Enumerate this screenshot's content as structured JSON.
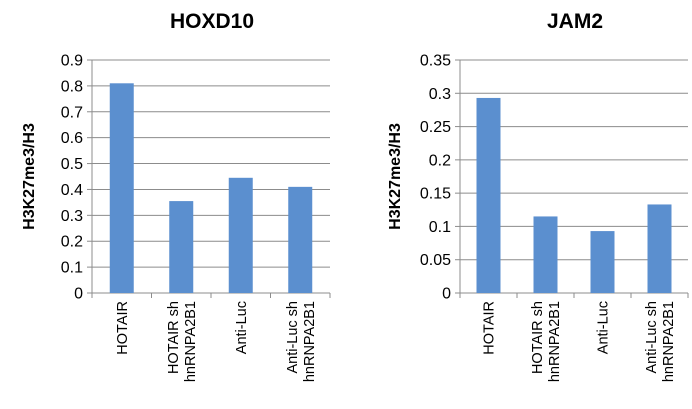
{
  "chart_data": [
    {
      "type": "bar",
      "title": "HOXD10",
      "xlabel": "",
      "ylabel": "H3K27me3/H3",
      "ylim": [
        0,
        0.9
      ],
      "yticks": [
        "0",
        "0.1",
        "0.2",
        "0.3",
        "0.4",
        "0.5",
        "0.6",
        "0.7",
        "0.8",
        "0.9"
      ],
      "grid": true,
      "legend": "none",
      "categories": [
        [
          "HOTAIR"
        ],
        [
          "HOTAIR sh",
          "hnRNPA2B1"
        ],
        [
          "Anti-Luc"
        ],
        [
          "Anti-Luc sh",
          "hnRNPA2B1"
        ]
      ],
      "values": [
        0.81,
        0.355,
        0.445,
        0.41
      ],
      "color": "#5b8fcf"
    },
    {
      "type": "bar",
      "title": "JAM2",
      "xlabel": "",
      "ylabel": "H3K27me3/H3",
      "ylim": [
        0,
        0.35
      ],
      "yticks": [
        "0",
        "0.05",
        "0.1",
        "0.15",
        "0.2",
        "0.25",
        "0.3",
        "0.35"
      ],
      "grid": true,
      "legend": "none",
      "categories": [
        [
          "HOTAIR"
        ],
        [
          "HOTAIR sh",
          "hnRNPA2B1"
        ],
        [
          "Anti-Luc"
        ],
        [
          "Anti-Luc sh",
          "hnRNPA2B1"
        ]
      ],
      "values": [
        0.293,
        0.115,
        0.093,
        0.133
      ],
      "color": "#5b8fcf"
    }
  ]
}
